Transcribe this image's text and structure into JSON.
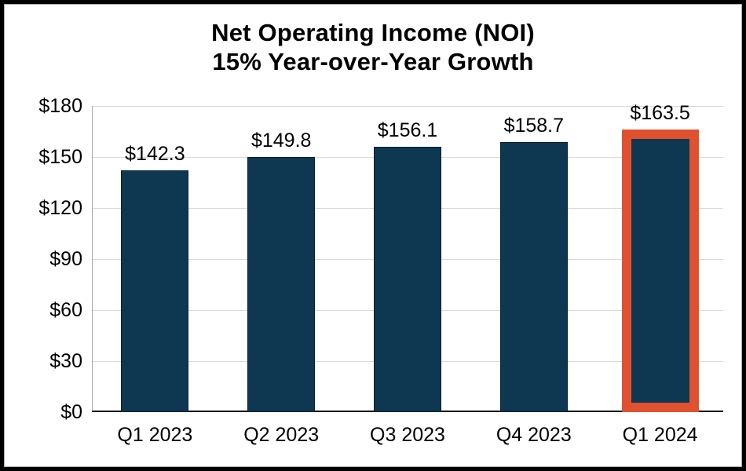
{
  "chart_data": {
    "type": "bar",
    "title": "Net Operating Income (NOI)",
    "subtitle": "15% Year-over-Year Growth",
    "categories": [
      "Q1 2023",
      "Q2 2023",
      "Q3 2023",
      "Q4 2023",
      "Q1 2024"
    ],
    "values": [
      142.3,
      149.8,
      156.1,
      158.7,
      163.5
    ],
    "value_labels": [
      "$142.3",
      "$149.8",
      "$156.1",
      "$158.7",
      "$163.5"
    ],
    "y_ticks": [
      {
        "label": "$180",
        "value": 180
      },
      {
        "label": "$150",
        "value": 150
      },
      {
        "label": "$120",
        "value": 120
      },
      {
        "label": "$90",
        "value": 90
      },
      {
        "label": "$60",
        "value": 60
      },
      {
        "label": "$30",
        "value": 30
      },
      {
        "label": "$0",
        "value": 0
      }
    ],
    "ylim": [
      0,
      180
    ],
    "xlabel": "",
    "ylabel": "",
    "grid": true,
    "legend": false,
    "highlight_index": 4,
    "colors": {
      "bar": "#0E3751",
      "bar_border": "#0A1F2E",
      "highlight_border": "#E0522F",
      "gridline": "#D9D9D9",
      "axis_line": "#000000",
      "plot_left_border": "#A6A6A6",
      "text": "#000000",
      "frame": "#000000",
      "background": "#FFFFFF"
    }
  }
}
